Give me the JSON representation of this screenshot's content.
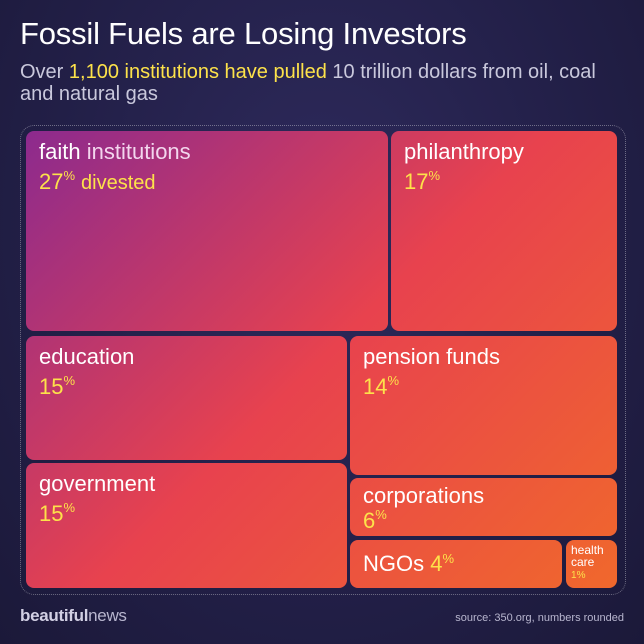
{
  "header": {
    "title": "Fossil Fuels are Losing Investors",
    "subtitle_part1": "Over ",
    "subtitle_highlight": "1,100 institutions have pulled",
    "subtitle_part2": " 10 trillion dollars from oil, coal and natural gas"
  },
  "tiles": {
    "faith": {
      "label": "faith",
      "label_suffix": "institutions",
      "value": "27",
      "unit": "%",
      "suffix": "divested"
    },
    "philanthropy": {
      "label": "philanthropy",
      "value": "17",
      "unit": "%"
    },
    "education": {
      "label": "education",
      "value": "15",
      "unit": "%"
    },
    "pension": {
      "label": "pension funds",
      "value": "14",
      "unit": "%"
    },
    "government": {
      "label": "government",
      "value": "15",
      "unit": "%"
    },
    "corporations": {
      "label": "corporations",
      "value": "6",
      "unit": "%"
    },
    "ngos": {
      "label": "NGOs",
      "value": "4",
      "unit": "%"
    },
    "health": {
      "label_line1": "health",
      "label_line2": "care",
      "value": "1",
      "unit": "%"
    }
  },
  "chart_data": {
    "type": "treemap",
    "title": "Fossil Fuels are Losing Investors",
    "categories": [
      "faith institutions",
      "philanthropy",
      "education",
      "pension funds",
      "government",
      "corporations",
      "NGOs",
      "health care"
    ],
    "values": [
      27,
      17,
      15,
      14,
      15,
      6,
      4,
      1
    ],
    "unit": "%",
    "colors": {
      "start": "#8c2a8e",
      "mid": "#e8424e",
      "end": "#f0682c",
      "value_text": "#fde24a"
    }
  },
  "footer": {
    "brand_bold": "beautiful",
    "brand_rest": "news",
    "source": "source: 350.org, numbers rounded"
  }
}
